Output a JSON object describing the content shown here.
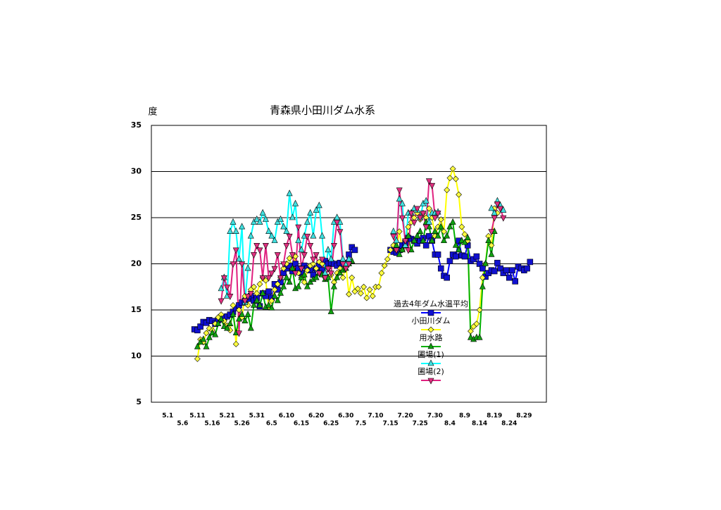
{
  "chart_data": {
    "type": "line",
    "title": "青森県小田川ダム水系",
    "y_label": "度",
    "ylim": [
      5,
      35
    ],
    "yticks": [
      5,
      10,
      15,
      20,
      25,
      30,
      35
    ],
    "grid": true,
    "categories": [
      null,
      null,
      null,
      null,
      null,
      "5.1",
      null,
      null,
      null,
      null,
      "5.6",
      null,
      null,
      null,
      null,
      "5.11",
      null,
      null,
      null,
      null,
      "5.16",
      null,
      null,
      null,
      null,
      "5.21",
      null,
      null,
      null,
      null,
      "5.26",
      null,
      null,
      null,
      null,
      "5.31",
      null,
      null,
      null,
      null,
      "6.5",
      null,
      null,
      null,
      null,
      "6.10",
      null,
      null,
      null,
      null,
      "6.15",
      null,
      null,
      null,
      null,
      "6.20",
      null,
      null,
      null,
      null,
      "6.25",
      null,
      null,
      null,
      null,
      "6.30",
      null,
      null,
      null,
      null,
      "7.5",
      null,
      null,
      null,
      null,
      "7.10",
      null,
      null,
      null,
      null,
      "7.15",
      null,
      null,
      null,
      null,
      "7.20",
      null,
      null,
      null,
      null,
      "7.25",
      null,
      null,
      null,
      null,
      "7.30",
      null,
      null,
      null,
      null,
      "8.4",
      null,
      null,
      null,
      null,
      "8.9",
      null,
      null,
      null,
      null,
      "8.14",
      null,
      null,
      null,
      null,
      "8.19",
      null,
      null,
      null,
      null,
      "8.24",
      null,
      null,
      null,
      null,
      "8.29",
      null,
      null,
      null,
      null,
      null,
      null,
      null
    ],
    "series": [
      {
        "name": "過去4年ダム水温平均",
        "color": "#0000ff",
        "marker_color": "#1010d0",
        "marker": "square",
        "values": [
          null,
          null,
          null,
          null,
          null,
          null,
          null,
          null,
          null,
          null,
          null,
          null,
          null,
          null,
          12.9,
          12.8,
          13.2,
          13.7,
          13.6,
          13.9,
          13.8,
          13.5,
          13.9,
          14.0,
          14.2,
          14.3,
          14.5,
          14.8,
          15.2,
          15.5,
          15.8,
          16.0,
          16.2,
          16.5,
          16.0,
          16.3,
          15.4,
          16.8,
          16.5,
          17.0,
          16.3,
          17.8,
          17.2,
          18.0,
          19.0,
          19.5,
          19.8,
          19.2,
          20.0,
          19.5,
          19.0,
          19.8,
          19.5,
          19.3,
          18.8,
          19.5,
          19.8,
          19.3,
          20.3,
          20.0,
          20.1,
          20.0,
          19.8,
          20.1,
          20.0,
          20.1,
          21.0,
          21.8,
          21.5,
          null,
          null,
          null,
          null,
          null,
          null,
          null,
          null,
          null,
          null,
          null,
          21.5,
          21.3,
          21.2,
          21.5,
          22.0,
          22.3,
          22.8,
          22.7,
          22.5,
          22.2,
          22.5,
          22.8,
          22.0,
          23.0,
          22.5,
          21.0,
          21.0,
          19.5,
          18.7,
          18.5,
          20.3,
          21.0,
          20.8,
          22.5,
          20.9,
          20.8,
          22.0,
          20.3,
          20.5,
          20.8,
          20.0,
          19.5,
          18.6,
          19.0,
          19.3,
          19.2,
          20.1,
          19.5,
          19.0,
          19.3,
          18.5,
          19.3,
          18.1,
          19.7,
          19.5,
          19.3,
          19.5,
          20.2,
          null,
          null,
          null,
          null,
          null
        ]
      },
      {
        "name": "小田川ダム",
        "color": "#ffff00",
        "marker_color": "#ffff40",
        "marker": "diamond",
        "values": [
          null,
          null,
          null,
          null,
          null,
          null,
          null,
          null,
          null,
          null,
          null,
          null,
          null,
          null,
          null,
          9.7,
          11.8,
          11.5,
          12.5,
          13.0,
          12.8,
          13.5,
          14.2,
          14.5,
          13.8,
          13.3,
          12.8,
          15.5,
          11.3,
          15.0,
          14.2,
          16.5,
          15.5,
          17.2,
          17.5,
          16.8,
          17.8,
          18.5,
          18.2,
          15.3,
          16.0,
          17.2,
          17.8,
          18.5,
          19.5,
          20.0,
          20.6,
          19.5,
          20.8,
          19.0,
          18.5,
          18.0,
          19.3,
          19.8,
          20.0,
          19.5,
          20.2,
          20.0,
          18.5,
          19.5,
          18.8,
          18.0,
          19.0,
          19.5,
          18.5,
          19.8,
          16.7,
          18.5,
          17.0,
          17.3,
          16.8,
          17.5,
          16.3,
          17.2,
          16.5,
          17.5,
          17.5,
          19.0,
          19.8,
          20.5,
          21.5,
          22.0,
          21.5,
          23.5,
          21.5,
          22.5,
          24.0,
          24.5,
          25.0,
          25.5,
          24.8,
          25.5,
          25.0,
          26.0,
          25.0,
          23.0,
          24.0,
          24.8,
          23.5,
          28.0,
          29.3,
          30.3,
          29.2,
          27.5,
          24.0,
          23.2,
          22.5,
          12.7,
          13.2,
          13.5,
          15.0,
          18.5,
          20.0,
          23.0,
          22.0,
          26.0,
          25.5,
          null,
          null,
          null,
          null,
          null,
          null,
          null,
          null,
          null,
          null,
          null,
          null,
          null,
          null,
          null,
          null
        ]
      },
      {
        "name": "用水路",
        "color": "#00b000",
        "marker_color": "#10a010",
        "marker": "triangle-up",
        "values": [
          null,
          null,
          null,
          null,
          null,
          null,
          null,
          null,
          null,
          null,
          null,
          null,
          null,
          null,
          null,
          11.0,
          11.5,
          11.8,
          11.0,
          12.0,
          12.5,
          12.3,
          13.5,
          14.0,
          13.2,
          13.0,
          13.5,
          14.5,
          12.5,
          14.0,
          14.5,
          13.8,
          14.5,
          13.0,
          15.5,
          16.0,
          15.5,
          16.8,
          15.3,
          15.5,
          15.2,
          16.5,
          16.0,
          16.8,
          17.5,
          18.5,
          18.0,
          19.5,
          17.3,
          17.5,
          18.5,
          18.8,
          17.5,
          18.0,
          18.3,
          18.5,
          19.0,
          18.8,
          18.3,
          18.5,
          14.8,
          17.5,
          18.5,
          19.0,
          19.3,
          19.5,
          20.0,
          20.3,
          null,
          null,
          null,
          null,
          null,
          null,
          null,
          null,
          null,
          null,
          null,
          null,
          null,
          null,
          22.0,
          21.0,
          21.5,
          22.0,
          23.0,
          21.5,
          22.5,
          23.0,
          23.5,
          22.5,
          24.5,
          24.0,
          22.5,
          23.5,
          23.0,
          24.0,
          22.5,
          23.0,
          24.0,
          24.5,
          22.0,
          21.5,
          22.5,
          22.3,
          22.8,
          12.0,
          11.8,
          12.0,
          12.0,
          17.5,
          20.0,
          22.5,
          21.0,
          23.5,
          null,
          null,
          null,
          null,
          null,
          null,
          null,
          null,
          null,
          null,
          null,
          null,
          null,
          null,
          null,
          null,
          null
        ]
      },
      {
        "name": "圃場(1)",
        "color": "#00ffff",
        "marker_color": "#40e0e0",
        "marker": "triangle-up",
        "values": [
          null,
          null,
          null,
          null,
          null,
          null,
          null,
          null,
          null,
          null,
          null,
          null,
          null,
          null,
          null,
          null,
          null,
          null,
          null,
          null,
          null,
          null,
          null,
          17.3,
          18.5,
          16.5,
          23.5,
          24.5,
          23.5,
          20.5,
          24.0,
          15.8,
          19.5,
          23.0,
          24.5,
          24.8,
          24.5,
          25.5,
          24.8,
          23.5,
          23.0,
          22.5,
          24.5,
          24.8,
          24.0,
          23.5,
          27.6,
          25.0,
          26.5,
          22.5,
          21.5,
          23.0,
          24.5,
          25.5,
          23.0,
          25.8,
          26.3,
          23.0,
          19.0,
          21.5,
          20.5,
          24.5,
          25.0,
          24.5,
          20.5,
          20.0,
          20.5,
          null,
          null,
          null,
          null,
          null,
          null,
          null,
          null,
          null,
          null,
          null,
          null,
          null,
          null,
          23.5,
          22.5,
          27.0,
          26.5,
          22.0,
          25.5,
          25.5,
          26.0,
          25.8,
          25.0,
          26.5,
          26.8,
          24.5,
          25.5,
          25.5,
          25.6,
          null,
          null,
          null,
          null,
          null,
          null,
          null,
          null,
          null,
          null,
          null,
          null,
          null,
          null,
          null,
          null,
          null,
          26.0,
          25.5,
          26.8,
          26.3,
          25.8,
          null,
          null,
          null,
          null,
          null,
          null,
          null,
          null,
          null,
          null,
          null,
          null,
          null,
          null
        ]
      },
      {
        "name": "圃場(2)",
        "color": "#e0207f",
        "marker_color": "#e03080",
        "marker": "triangle-down",
        "values": [
          null,
          null,
          null,
          null,
          null,
          null,
          null,
          null,
          null,
          null,
          null,
          null,
          null,
          null,
          null,
          null,
          null,
          null,
          null,
          null,
          null,
          null,
          null,
          16.0,
          18.5,
          17.5,
          16.5,
          20.0,
          21.5,
          12.5,
          20.0,
          16.0,
          16.5,
          16.8,
          21.0,
          22.0,
          21.5,
          18.5,
          22.0,
          18.5,
          19.0,
          19.5,
          21.0,
          18.5,
          20.0,
          22.0,
          23.0,
          21.0,
          19.0,
          24.0,
          19.5,
          21.0,
          23.0,
          22.0,
          20.5,
          21.0,
          19.0,
          20.5,
          18.5,
          19.5,
          19.0,
          22.0,
          24.5,
          23.5,
          20.0,
          19.5,
          20.0,
          null,
          null,
          null,
          null,
          null,
          null,
          null,
          null,
          null,
          null,
          null,
          null,
          null,
          null,
          23.0,
          21.5,
          28.0,
          25.0,
          22.5,
          21.5,
          25.5,
          24.5,
          26.0,
          25.0,
          25.5,
          24.0,
          29.0,
          28.5,
          25.0,
          25.5,
          null,
          null,
          null,
          null,
          null,
          null,
          null,
          null,
          null,
          null,
          null,
          null,
          null,
          null,
          null,
          null,
          null,
          23.5,
          25.0,
          26.5,
          26.0,
          25.0,
          null,
          null,
          null,
          null,
          null,
          null,
          null,
          null,
          null,
          null,
          null,
          null,
          null,
          null
        ]
      }
    ]
  }
}
